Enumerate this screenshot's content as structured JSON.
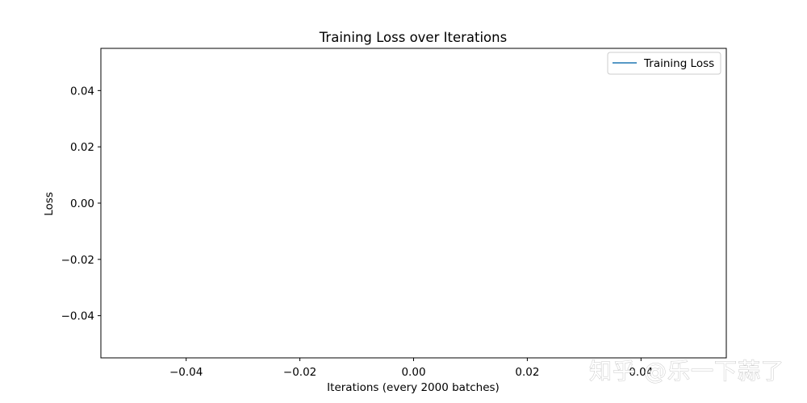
{
  "chart_data": {
    "type": "line",
    "title": "Training Loss over Iterations",
    "xlabel": "Iterations (every 2000 batches)",
    "ylabel": "Loss",
    "xlim": [
      -0.055,
      0.055
    ],
    "ylim": [
      -0.055,
      0.055
    ],
    "xticks": [
      -0.04,
      -0.02,
      0.0,
      0.02,
      0.04
    ],
    "yticks": [
      -0.04,
      -0.02,
      0.0,
      0.02,
      0.04
    ],
    "xtick_labels": [
      "−0.04",
      "−0.02",
      "0.00",
      "0.02",
      "0.04"
    ],
    "ytick_labels": [
      "−0.04",
      "−0.02",
      "0.00",
      "0.02",
      "0.04"
    ],
    "grid": false,
    "legend_position": "top-right",
    "series": [
      {
        "name": "Training Loss",
        "color": "#1f77b4",
        "x": [],
        "y": []
      }
    ]
  },
  "watermark": {
    "text": "知乎 @乐一下蒜了"
  }
}
